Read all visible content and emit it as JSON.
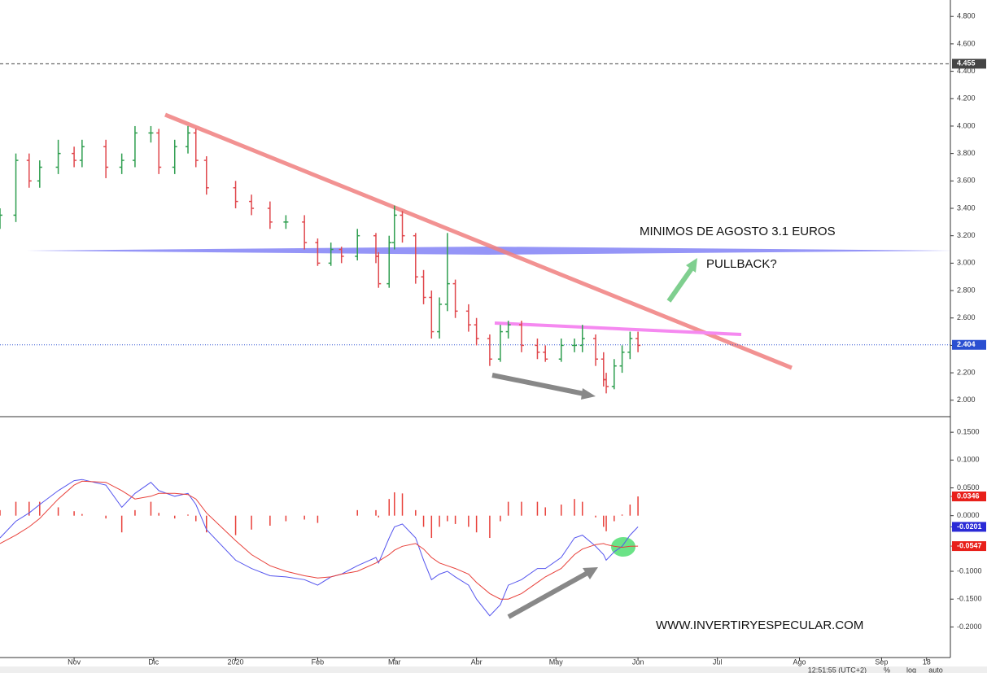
{
  "chart_data": [
    {
      "type": "ohlc",
      "xlim": [
        0,
        359
      ],
      "ylim": [
        1.88,
        4.92
      ],
      "yticks": [
        {
          "value": 2.0,
          "label": "2.000"
        },
        {
          "value": 2.2,
          "label": "2.200"
        },
        {
          "value": 2.4,
          "label": "2.400"
        },
        {
          "value": 2.6,
          "label": "2.600"
        },
        {
          "value": 2.8,
          "label": "2.800"
        },
        {
          "value": 3.0,
          "label": "3.000"
        },
        {
          "value": 3.2,
          "label": "3.200"
        },
        {
          "value": 3.4,
          "label": "3.400"
        },
        {
          "value": 3.6,
          "label": "3.600"
        },
        {
          "value": 3.8,
          "label": "3.800"
        },
        {
          "value": 4.0,
          "label": "4.000"
        },
        {
          "value": 4.2,
          "label": "4.200"
        },
        {
          "value": 4.4,
          "label": "4.400"
        },
        {
          "value": 4.6,
          "label": "4.600"
        },
        {
          "value": 4.8,
          "label": "4.800"
        }
      ],
      "x": [
        0,
        6,
        11,
        15,
        22,
        28,
        31,
        40,
        46,
        51,
        57,
        60,
        66,
        71,
        74,
        78,
        89,
        95,
        102,
        108,
        115,
        120,
        125,
        129,
        135,
        142,
        143,
        147,
        149,
        152,
        157,
        160,
        163,
        166,
        169,
        172,
        177,
        180,
        185,
        189,
        192,
        197,
        203,
        206,
        212,
        217,
        220,
        225,
        228,
        229,
        232,
        235,
        238,
        241
      ],
      "open": [
        3.3,
        3.35,
        3.75,
        3.6,
        3.7,
        3.8,
        3.75,
        3.85,
        3.7,
        3.75,
        3.95,
        3.95,
        3.7,
        3.85,
        3.95,
        3.75,
        3.55,
        3.45,
        3.4,
        3.3,
        3.3,
        3.15,
        3.0,
        3.1,
        3.05,
        3.2,
        3.05,
        2.85,
        3.15,
        3.35,
        3.2,
        2.9,
        2.75,
        2.5,
        2.7,
        2.85,
        2.65,
        2.55,
        2.45,
        2.3,
        2.5,
        2.55,
        2.4,
        2.35,
        2.3,
        2.4,
        2.4,
        2.45,
        2.3,
        2.15,
        2.1,
        2.25,
        2.35,
        2.45
      ],
      "high": [
        3.4,
        3.8,
        3.8,
        3.75,
        3.9,
        3.85,
        3.9,
        3.9,
        3.8,
        4.0,
        4.0,
        3.98,
        3.9,
        4.0,
        3.98,
        3.78,
        3.6,
        3.5,
        3.45,
        3.35,
        3.35,
        3.18,
        3.15,
        3.12,
        3.25,
        3.22,
        3.08,
        3.2,
        3.42,
        3.38,
        3.22,
        2.95,
        2.8,
        2.75,
        3.22,
        2.88,
        2.7,
        2.6,
        2.48,
        2.55,
        2.58,
        2.58,
        2.45,
        2.4,
        2.45,
        2.45,
        2.55,
        2.48,
        2.35,
        2.2,
        2.3,
        2.4,
        2.5,
        2.5
      ],
      "low": [
        3.25,
        3.3,
        3.55,
        3.55,
        3.65,
        3.7,
        3.7,
        3.62,
        3.65,
        3.7,
        3.88,
        3.65,
        3.65,
        3.8,
        3.7,
        3.5,
        3.4,
        3.35,
        3.25,
        3.25,
        3.1,
        2.98,
        2.98,
        3.0,
        3.02,
        3.0,
        2.82,
        2.82,
        3.1,
        3.15,
        2.85,
        2.7,
        2.45,
        2.45,
        2.65,
        2.6,
        2.5,
        2.4,
        2.25,
        2.28,
        2.45,
        2.35,
        2.3,
        2.28,
        2.28,
        2.35,
        2.35,
        2.25,
        2.1,
        2.05,
        2.08,
        2.2,
        2.3,
        2.35
      ],
      "close": [
        3.35,
        3.75,
        3.6,
        3.7,
        3.8,
        3.75,
        3.85,
        3.7,
        3.75,
        3.95,
        3.95,
        3.7,
        3.85,
        3.95,
        3.75,
        3.55,
        3.45,
        3.4,
        3.3,
        3.3,
        3.15,
        3.0,
        3.1,
        3.05,
        3.2,
        3.05,
        2.85,
        3.15,
        3.35,
        3.2,
        2.9,
        2.75,
        2.5,
        2.7,
        2.85,
        2.65,
        2.55,
        2.45,
        2.3,
        2.5,
        2.55,
        2.4,
        2.35,
        2.3,
        2.4,
        2.4,
        2.45,
        2.3,
        2.15,
        2.1,
        2.25,
        2.35,
        2.45,
        2.4
      ],
      "up_color": "#2e9e4f",
      "down_color": "#e0474c",
      "markers": [
        {
          "value": 4.455,
          "label": "4.455",
          "color": "#444444",
          "style": "dashed"
        },
        {
          "value": 2.404,
          "label": "2.404",
          "color": "#2a4fd1",
          "style": "dotted"
        }
      ],
      "annotations": [
        "MINIMOS DE AGOSTO 3.1 EUROS",
        "PULLBACK?"
      ]
    },
    {
      "type": "line",
      "xlim": [
        0,
        359
      ],
      "ylim": [
        -0.255,
        0.178
      ],
      "yticks": [
        {
          "value": 0.15,
          "label": "0.1500"
        },
        {
          "value": 0.1,
          "label": "0.1000"
        },
        {
          "value": 0.05,
          "label": "0.0500"
        },
        {
          "value": 0,
          "label": "0.0000"
        },
        {
          "value": -0.1,
          "label": "-0.1000"
        },
        {
          "value": -0.15,
          "label": "-0.1500"
        },
        {
          "value": -0.2,
          "label": "-0.2000"
        }
      ],
      "xticks": [
        {
          "value": 28,
          "label": "Nov"
        },
        {
          "value": 58,
          "label": "Dic"
        },
        {
          "value": 89,
          "label": "2020"
        },
        {
          "value": 120,
          "label": "Feb"
        },
        {
          "value": 149,
          "label": "Mar"
        },
        {
          "value": 180,
          "label": "Abr"
        },
        {
          "value": 210,
          "label": "May"
        },
        {
          "value": 241,
          "label": "Jun"
        },
        {
          "value": 271,
          "label": "Jul"
        },
        {
          "value": 302,
          "label": "Ago"
        },
        {
          "value": 333,
          "label": "Sep"
        },
        {
          "value": 350,
          "label": "18"
        }
      ],
      "x": [
        0,
        6,
        11,
        15,
        22,
        28,
        31,
        40,
        46,
        51,
        57,
        60,
        66,
        71,
        74,
        78,
        89,
        95,
        102,
        108,
        115,
        120,
        125,
        129,
        135,
        142,
        143,
        147,
        149,
        152,
        157,
        160,
        163,
        166,
        169,
        172,
        177,
        180,
        185,
        189,
        192,
        197,
        203,
        206,
        212,
        217,
        220,
        225,
        228,
        229,
        232,
        235,
        238,
        241
      ],
      "series": [
        {
          "color": "#e8403a",
          "style": "histogram",
          "values": [
            0.01,
            0.025,
            0.025,
            0.025,
            0.015,
            0.008,
            0.003,
            -0.005,
            -0.03,
            0.01,
            0.025,
            0.005,
            -0.005,
            0.002,
            -0.01,
            -0.03,
            -0.035,
            -0.025,
            -0.018,
            -0.01,
            -0.007,
            -0.013,
            0.0,
            0.0,
            0.01,
            0.01,
            -0.003,
            0.03,
            0.042,
            0.04,
            0.01,
            -0.02,
            -0.04,
            -0.02,
            -0.01,
            -0.015,
            -0.02,
            -0.03,
            -0.04,
            -0.01,
            0.025,
            0.025,
            0.025,
            0.015,
            0.02,
            0.03,
            0.025,
            -0.003,
            -0.02,
            -0.028,
            -0.01,
            0.002,
            0.02,
            0.0346
          ]
        },
        {
          "color": "#5555ee",
          "style": "line",
          "values": [
            -0.04,
            -0.01,
            0.005,
            0.02,
            0.045,
            0.063,
            0.065,
            0.055,
            0.015,
            0.04,
            0.06,
            0.045,
            0.035,
            0.04,
            0.02,
            -0.025,
            -0.08,
            -0.095,
            -0.108,
            -0.11,
            -0.115,
            -0.125,
            -0.11,
            -0.105,
            -0.09,
            -0.075,
            -0.085,
            -0.04,
            -0.02,
            -0.015,
            -0.04,
            -0.08,
            -0.115,
            -0.105,
            -0.1,
            -0.11,
            -0.125,
            -0.15,
            -0.18,
            -0.16,
            -0.125,
            -0.115,
            -0.095,
            -0.095,
            -0.075,
            -0.04,
            -0.035,
            -0.055,
            -0.07,
            -0.08,
            -0.065,
            -0.055,
            -0.035,
            -0.0201
          ]
        },
        {
          "color": "#e8403a",
          "style": "line",
          "values": [
            -0.05,
            -0.035,
            -0.02,
            -0.005,
            0.03,
            0.055,
            0.062,
            0.06,
            0.045,
            0.03,
            0.035,
            0.04,
            0.04,
            0.038,
            0.03,
            0.005,
            -0.045,
            -0.07,
            -0.09,
            -0.1,
            -0.108,
            -0.112,
            -0.11,
            -0.105,
            -0.1,
            -0.085,
            -0.082,
            -0.07,
            -0.062,
            -0.055,
            -0.05,
            -0.06,
            -0.075,
            -0.085,
            -0.09,
            -0.095,
            -0.105,
            -0.12,
            -0.14,
            -0.15,
            -0.15,
            -0.14,
            -0.12,
            -0.11,
            -0.095,
            -0.07,
            -0.06,
            -0.052,
            -0.05,
            -0.052,
            -0.055,
            -0.057,
            -0.055,
            -0.0547
          ]
        }
      ],
      "markers": [
        {
          "value": 0.0346,
          "label": "0.0346",
          "color": "#e8201a",
          "style": "tag"
        },
        {
          "value": -0.0201,
          "label": "-0.0201",
          "color": "#2a2ad6",
          "style": "tag"
        },
        {
          "value": -0.0547,
          "label": "-0.0547",
          "color": "#e8201a",
          "style": "tag"
        }
      ],
      "annotations": [
        "WWW.INVERTIRYESPECULAR.COM"
      ]
    }
  ],
  "toolbar": {
    "time": "12:51:55 (UTC+2)",
    "items": [
      "%",
      "log",
      "auto"
    ]
  }
}
